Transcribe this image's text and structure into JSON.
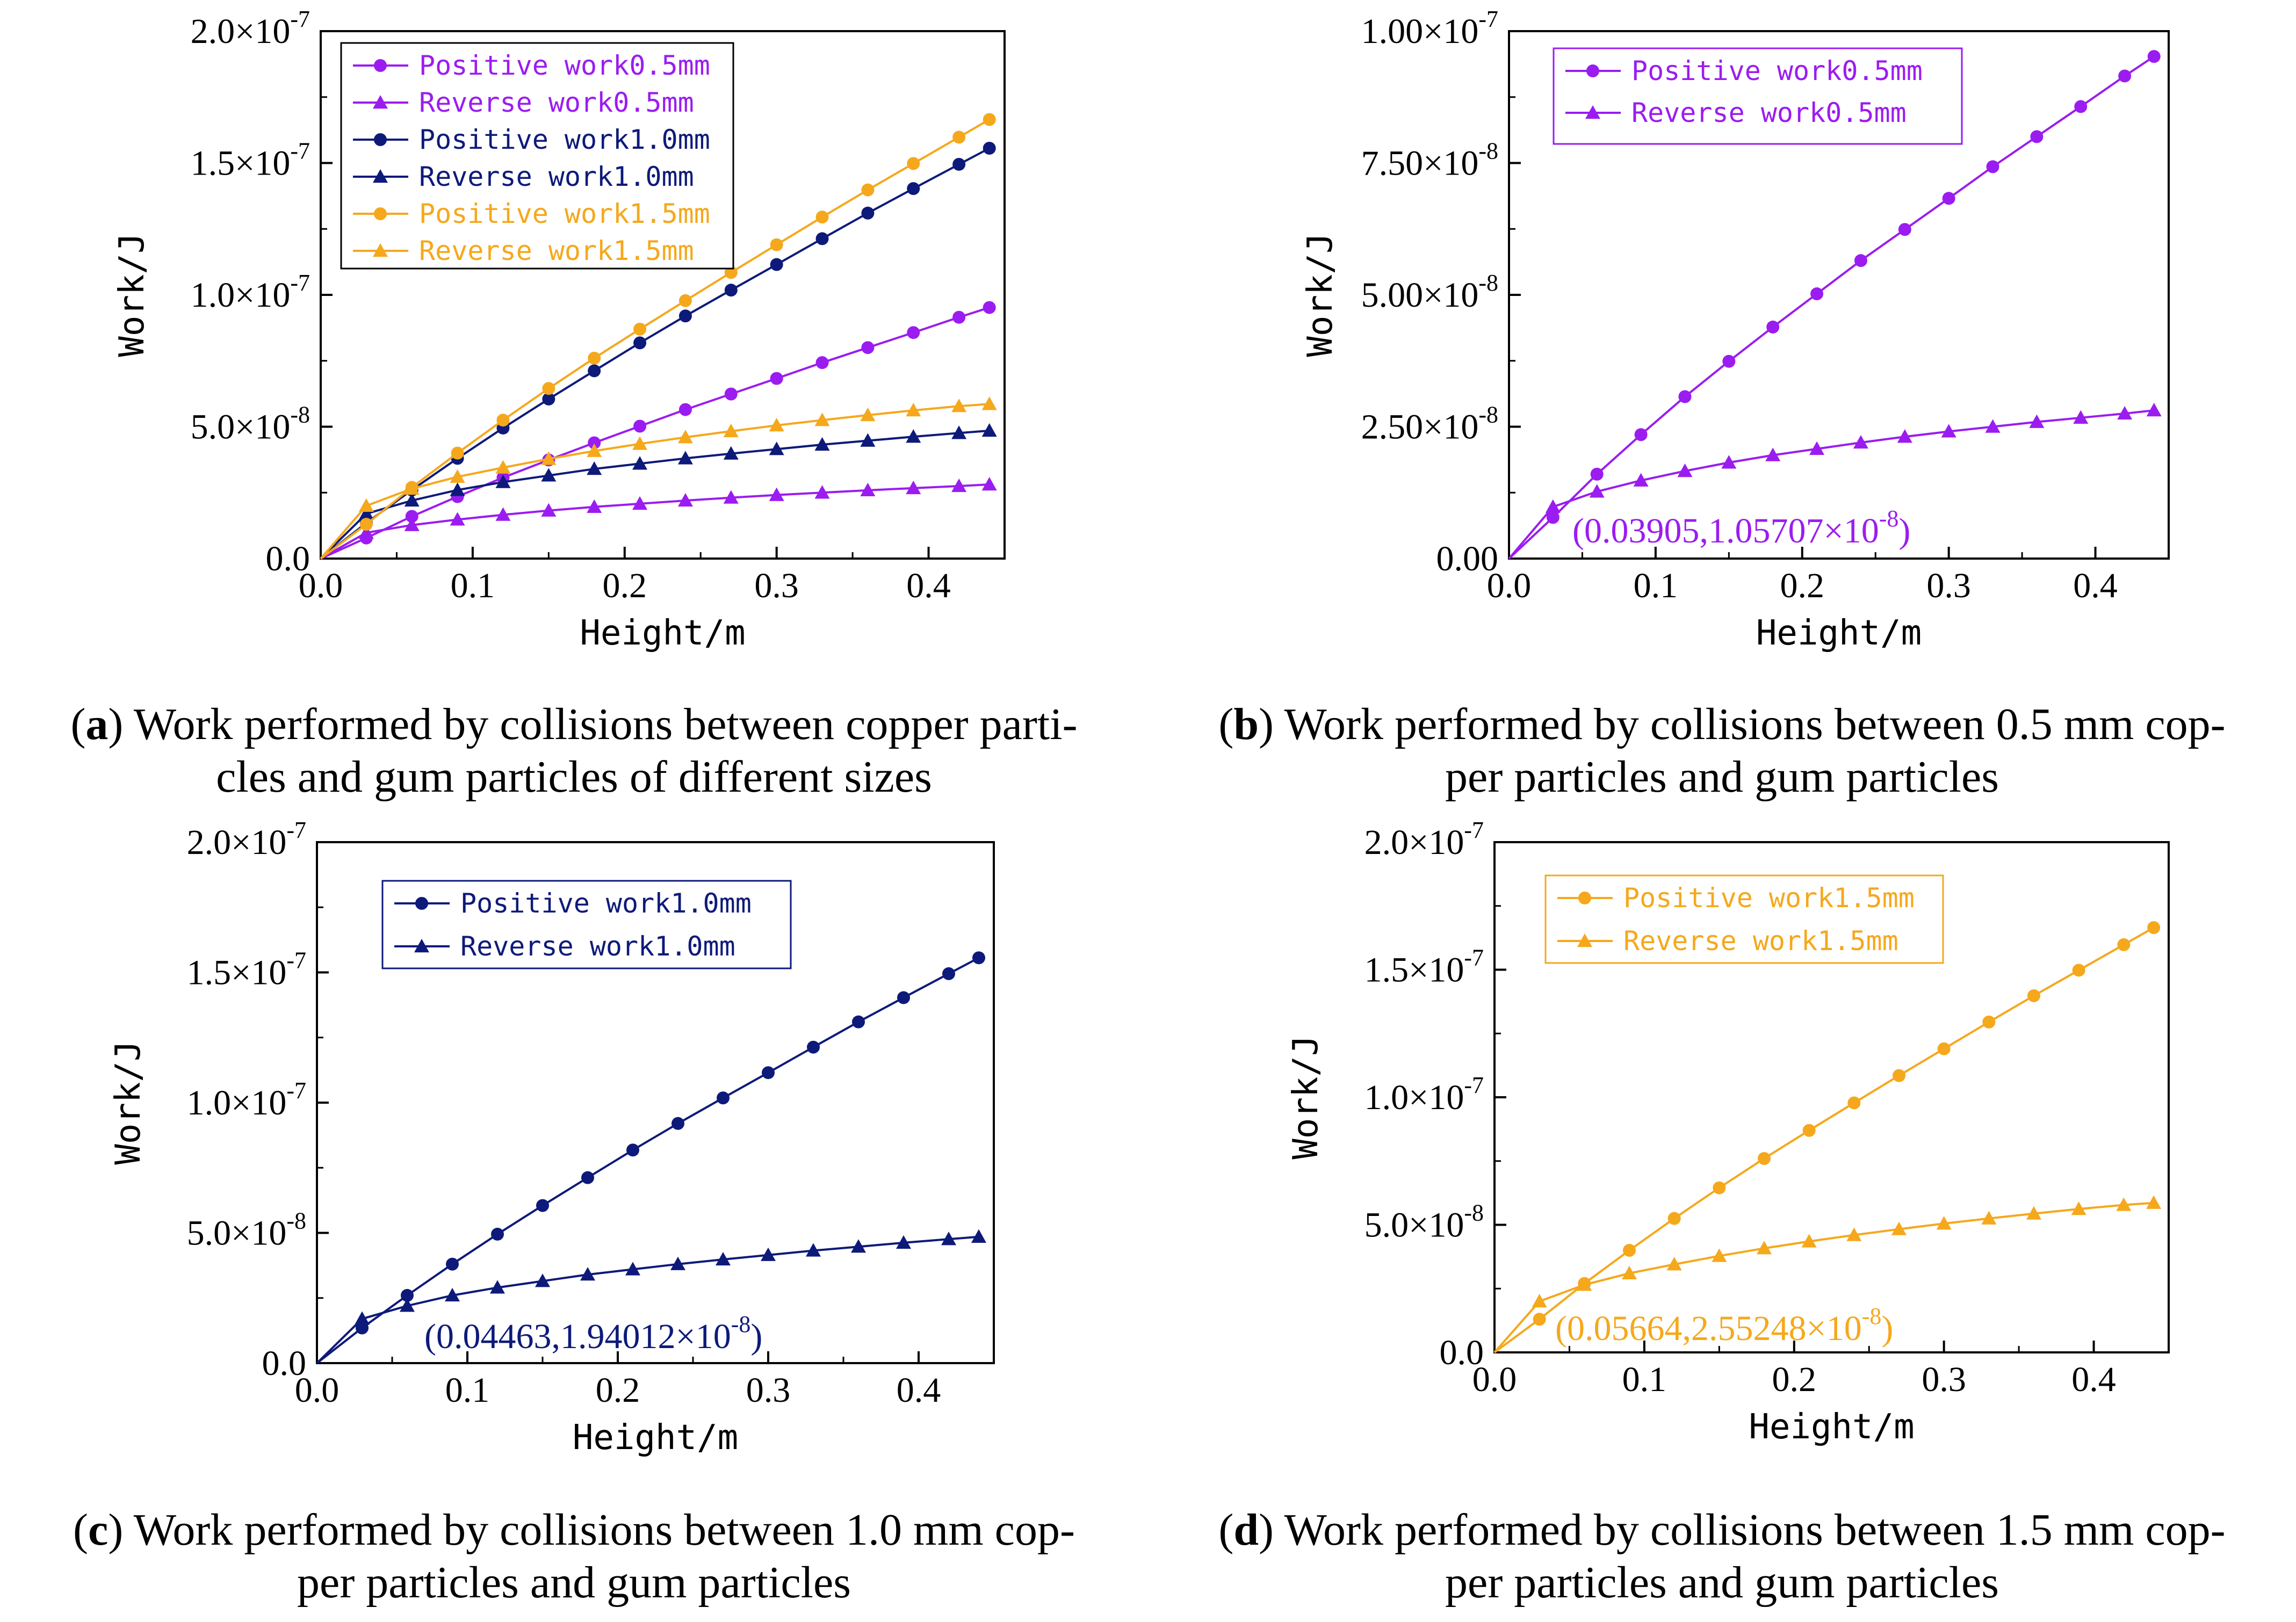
{
  "colors": {
    "d05": "#9b1cf0",
    "d10": "#0d1a7a",
    "d15": "#f5a81c"
  },
  "panels": [
    {
      "id": "a",
      "caption_letter": "a",
      "caption_text": " Work performed by collisions between copper parti-",
      "caption_line2": "cles and gum particles of different sizes"
    },
    {
      "id": "b",
      "caption_letter": "b",
      "caption_text": " Work performed by collisions between 0.5 mm cop-",
      "caption_line2": "per particles and gum particles"
    },
    {
      "id": "c",
      "caption_letter": "c",
      "caption_text": " Work performed by collisions between 1.0 mm cop-",
      "caption_line2": "per particles and gum particles"
    },
    {
      "id": "d",
      "caption_letter": "d",
      "caption_text": " Work performed by collisions between 1.5 mm cop-",
      "caption_line2": "per particles and gum particles"
    }
  ],
  "chart_data": [
    {
      "panel": "a",
      "type": "line",
      "xlabel": "Height/m",
      "ylabel": "Work/J",
      "xlim": [
        0,
        0.45
      ],
      "ylim": [
        0,
        2e-07
      ],
      "xticks": [
        "0.0",
        "0.1",
        "0.2",
        "0.3",
        "0.4"
      ],
      "yticks": [
        {
          "mant": "0.0",
          "exp": ""
        },
        {
          "mant": "5.0×10",
          "exp": "-8"
        },
        {
          "mant": "1.0×10",
          "exp": "-7"
        },
        {
          "mant": "1.5×10",
          "exp": "-7"
        },
        {
          "mant": "2.0×10",
          "exp": "-7"
        }
      ],
      "legend": "top-left",
      "series": [
        {
          "name": "Positive work0.5mm",
          "marker": "circle",
          "color": "#9b1cf0",
          "x": [
            0,
            0.03,
            0.06,
            0.09,
            0.12,
            0.15,
            0.18,
            0.21,
            0.24,
            0.27,
            0.3,
            0.33,
            0.36,
            0.39,
            0.42,
            0.44
          ],
          "y": [
            0,
            7.8e-09,
            1.6e-08,
            2.35e-08,
            3.07e-08,
            3.74e-08,
            4.39e-08,
            5.02e-08,
            5.65e-08,
            6.24e-08,
            6.83e-08,
            7.43e-08,
            8e-08,
            8.57e-08,
            9.15e-08,
            9.52e-08
          ]
        },
        {
          "name": "Reverse work0.5mm",
          "marker": "triangle",
          "color": "#9b1cf0",
          "x": [
            0,
            0.03,
            0.06,
            0.09,
            0.12,
            0.15,
            0.18,
            0.21,
            0.24,
            0.27,
            0.3,
            0.33,
            0.36,
            0.39,
            0.42,
            0.44
          ],
          "y": [
            0,
            9.8e-09,
            1.27e-08,
            1.48e-08,
            1.66e-08,
            1.82e-08,
            1.96e-08,
            2.08e-08,
            2.2e-08,
            2.31e-08,
            2.41e-08,
            2.5e-08,
            2.59e-08,
            2.67e-08,
            2.75e-08,
            2.81e-08
          ]
        },
        {
          "name": "Positive work1.0mm",
          "marker": "circle",
          "color": "#0d1a7a",
          "x": [
            0,
            0.03,
            0.06,
            0.09,
            0.12,
            0.15,
            0.18,
            0.21,
            0.24,
            0.27,
            0.3,
            0.33,
            0.36,
            0.39,
            0.42,
            0.44
          ],
          "y": [
            0,
            1.35e-08,
            2.6e-08,
            3.8e-08,
            4.95e-08,
            6.05e-08,
            7.12e-08,
            8.18e-08,
            9.2e-08,
            1.018e-07,
            1.115e-07,
            1.213e-07,
            1.31e-07,
            1.403e-07,
            1.495e-07,
            1.556e-07
          ]
        },
        {
          "name": "Reverse work1.0mm",
          "marker": "triangle",
          "color": "#0d1a7a",
          "x": [
            0,
            0.03,
            0.06,
            0.09,
            0.12,
            0.15,
            0.18,
            0.21,
            0.24,
            0.27,
            0.3,
            0.33,
            0.36,
            0.39,
            0.42,
            0.44
          ],
          "y": [
            0,
            1.7e-08,
            2.2e-08,
            2.6e-08,
            2.9e-08,
            3.15e-08,
            3.4e-08,
            3.6e-08,
            3.8e-08,
            3.98e-08,
            4.15e-08,
            4.32e-08,
            4.47e-08,
            4.62e-08,
            4.76e-08,
            4.85e-08
          ]
        },
        {
          "name": "Positive work1.5mm",
          "marker": "circle",
          "color": "#f5a81c",
          "x": [
            0,
            0.03,
            0.06,
            0.09,
            0.12,
            0.15,
            0.18,
            0.21,
            0.24,
            0.27,
            0.3,
            0.33,
            0.36,
            0.39,
            0.42,
            0.44
          ],
          "y": [
            0,
            1.3e-08,
            2.7e-08,
            4e-08,
            5.25e-08,
            6.45e-08,
            7.6e-08,
            8.7e-08,
            9.78e-08,
            1.085e-07,
            1.19e-07,
            1.295e-07,
            1.398e-07,
            1.498e-07,
            1.598e-07,
            1.665e-07
          ]
        },
        {
          "name": "Reverse work1.5mm",
          "marker": "triangle",
          "color": "#f5a81c",
          "x": [
            0,
            0.03,
            0.06,
            0.09,
            0.12,
            0.15,
            0.18,
            0.21,
            0.24,
            0.27,
            0.3,
            0.33,
            0.36,
            0.39,
            0.42,
            0.44
          ],
          "y": [
            0,
            2e-08,
            2.65e-08,
            3.1e-08,
            3.45e-08,
            3.78e-08,
            4.08e-08,
            4.35e-08,
            4.6e-08,
            4.83e-08,
            5.05e-08,
            5.25e-08,
            5.44e-08,
            5.62e-08,
            5.78e-08,
            5.86e-08
          ]
        }
      ]
    },
    {
      "panel": "b",
      "type": "line",
      "xlabel": "Height/m",
      "ylabel": "Work/J",
      "xlim": [
        0,
        0.45
      ],
      "ylim": [
        0,
        1e-07
      ],
      "xticks": [
        "0.0",
        "0.1",
        "0.2",
        "0.3",
        "0.4"
      ],
      "yticks": [
        {
          "mant": "0.00",
          "exp": ""
        },
        {
          "mant": "2.50×10",
          "exp": "-8"
        },
        {
          "mant": "5.00×10",
          "exp": "-8"
        },
        {
          "mant": "7.50×10",
          "exp": "-8"
        },
        {
          "mant": "1.00×10",
          "exp": "-7"
        }
      ],
      "legend": "top-left",
      "annotation": {
        "text": "(0.03905,1.05707×10",
        "sup": "-8",
        "close": ")",
        "x": 0.03905,
        "y": 1.05707e-08
      },
      "series": [
        {
          "name": "Positive work0.5mm",
          "marker": "circle",
          "color": "#9b1cf0",
          "x": [
            0,
            0.03,
            0.06,
            0.09,
            0.12,
            0.15,
            0.18,
            0.21,
            0.24,
            0.27,
            0.3,
            0.33,
            0.36,
            0.39,
            0.42,
            0.44
          ],
          "y": [
            0,
            7.8e-09,
            1.6e-08,
            2.35e-08,
            3.07e-08,
            3.74e-08,
            4.39e-08,
            5.02e-08,
            5.65e-08,
            6.24e-08,
            6.83e-08,
            7.43e-08,
            8e-08,
            8.57e-08,
            9.15e-08,
            9.52e-08
          ]
        },
        {
          "name": "Reverse work0.5mm",
          "marker": "triangle",
          "color": "#9b1cf0",
          "x": [
            0,
            0.03,
            0.06,
            0.09,
            0.12,
            0.15,
            0.18,
            0.21,
            0.24,
            0.27,
            0.3,
            0.33,
            0.36,
            0.39,
            0.42,
            0.44
          ],
          "y": [
            0,
            9.8e-09,
            1.27e-08,
            1.48e-08,
            1.66e-08,
            1.82e-08,
            1.96e-08,
            2.08e-08,
            2.2e-08,
            2.31e-08,
            2.41e-08,
            2.5e-08,
            2.59e-08,
            2.67e-08,
            2.75e-08,
            2.81e-08
          ]
        }
      ]
    },
    {
      "panel": "c",
      "type": "line",
      "xlabel": "Height/m",
      "ylabel": "Work/J",
      "xlim": [
        0,
        0.45
      ],
      "ylim": [
        0,
        2e-07
      ],
      "xticks": [
        "0.0",
        "0.1",
        "0.2",
        "0.3",
        "0.4"
      ],
      "yticks": [
        {
          "mant": "0.0",
          "exp": ""
        },
        {
          "mant": "5.0×10",
          "exp": "-8"
        },
        {
          "mant": "1.0×10",
          "exp": "-7"
        },
        {
          "mant": "1.5×10",
          "exp": "-7"
        },
        {
          "mant": "2.0×10",
          "exp": "-7"
        }
      ],
      "legend": "top-left",
      "annotation": {
        "text": "(0.04463,1.94012×10",
        "sup": "-8",
        "close": ")",
        "x": 0.04463,
        "y": 1.94012e-08
      },
      "series": [
        {
          "name": "Positive work1.0mm",
          "marker": "circle",
          "color": "#0d1a7a",
          "x": [
            0,
            0.03,
            0.06,
            0.09,
            0.12,
            0.15,
            0.18,
            0.21,
            0.24,
            0.27,
            0.3,
            0.33,
            0.36,
            0.39,
            0.42,
            0.44
          ],
          "y": [
            0,
            1.35e-08,
            2.6e-08,
            3.8e-08,
            4.95e-08,
            6.05e-08,
            7.12e-08,
            8.18e-08,
            9.2e-08,
            1.018e-07,
            1.115e-07,
            1.213e-07,
            1.31e-07,
            1.403e-07,
            1.495e-07,
            1.556e-07
          ]
        },
        {
          "name": "Reverse work1.0mm",
          "marker": "triangle",
          "color": "#0d1a7a",
          "x": [
            0,
            0.03,
            0.06,
            0.09,
            0.12,
            0.15,
            0.18,
            0.21,
            0.24,
            0.27,
            0.3,
            0.33,
            0.36,
            0.39,
            0.42,
            0.44
          ],
          "y": [
            0,
            1.7e-08,
            2.2e-08,
            2.6e-08,
            2.9e-08,
            3.15e-08,
            3.4e-08,
            3.6e-08,
            3.8e-08,
            3.98e-08,
            4.15e-08,
            4.32e-08,
            4.47e-08,
            4.62e-08,
            4.76e-08,
            4.85e-08
          ]
        }
      ]
    },
    {
      "panel": "d",
      "type": "line",
      "xlabel": "Height/m",
      "ylabel": "Work/J",
      "xlim": [
        0,
        0.45
      ],
      "ylim": [
        0,
        2e-07
      ],
      "xticks": [
        "0.0",
        "0.1",
        "0.2",
        "0.3",
        "0.4"
      ],
      "yticks": [
        {
          "mant": "0.0",
          "exp": ""
        },
        {
          "mant": "5.0×10",
          "exp": "-8"
        },
        {
          "mant": "1.0×10",
          "exp": "-7"
        },
        {
          "mant": "1.5×10",
          "exp": "-7"
        },
        {
          "mant": "2.0×10",
          "exp": "-7"
        }
      ],
      "legend": "top-left",
      "annotation": {
        "text": "(0.05664,2.55248×10",
        "sup": "-8",
        "close": ")",
        "x": 0.05664,
        "y": 2.55248e-08
      },
      "series": [
        {
          "name": "Positive work1.5mm",
          "marker": "circle",
          "color": "#f5a81c",
          "x": [
            0,
            0.03,
            0.06,
            0.09,
            0.12,
            0.15,
            0.18,
            0.21,
            0.24,
            0.27,
            0.3,
            0.33,
            0.36,
            0.39,
            0.42,
            0.44
          ],
          "y": [
            0,
            1.3e-08,
            2.7e-08,
            4e-08,
            5.25e-08,
            6.45e-08,
            7.6e-08,
            8.7e-08,
            9.78e-08,
            1.085e-07,
            1.19e-07,
            1.295e-07,
            1.398e-07,
            1.498e-07,
            1.598e-07,
            1.665e-07
          ]
        },
        {
          "name": "Reverse work1.5mm",
          "marker": "triangle",
          "color": "#f5a81c",
          "x": [
            0,
            0.03,
            0.06,
            0.09,
            0.12,
            0.15,
            0.18,
            0.21,
            0.24,
            0.27,
            0.3,
            0.33,
            0.36,
            0.39,
            0.42,
            0.44
          ],
          "y": [
            0,
            2e-08,
            2.65e-08,
            3.1e-08,
            3.45e-08,
            3.78e-08,
            4.08e-08,
            4.35e-08,
            4.6e-08,
            4.83e-08,
            5.05e-08,
            5.25e-08,
            5.44e-08,
            5.62e-08,
            5.78e-08,
            5.86e-08
          ]
        }
      ]
    }
  ]
}
